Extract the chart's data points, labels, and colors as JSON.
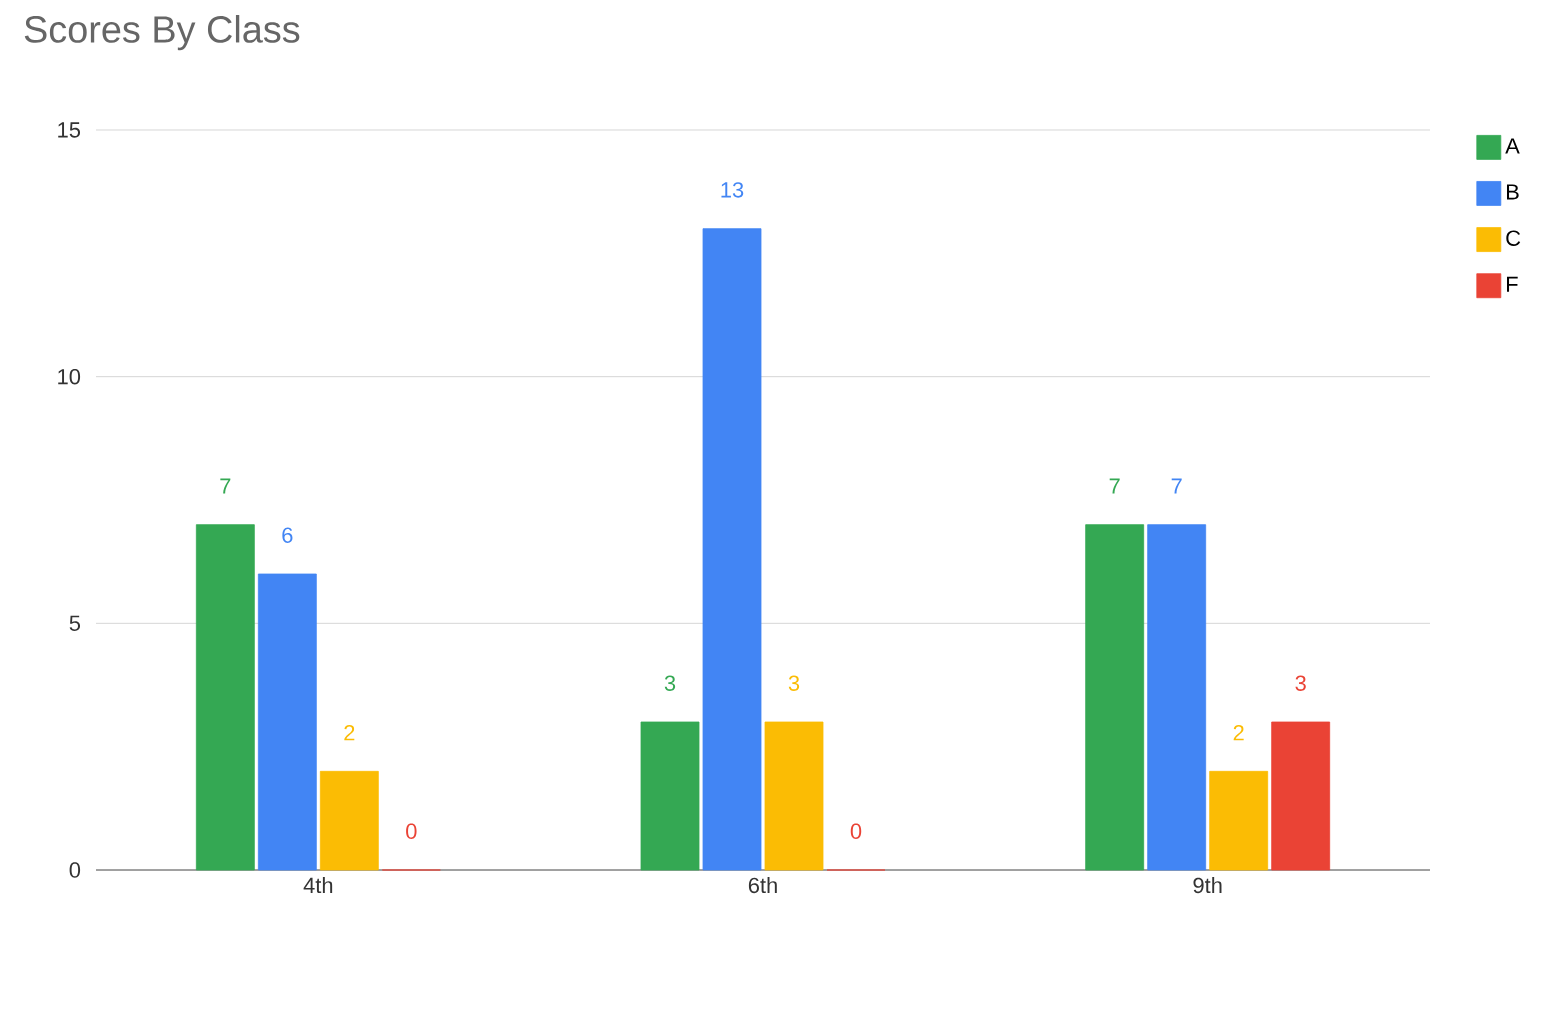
{
  "chart_data": {
    "type": "bar",
    "title": "Scores By Class",
    "categories": [
      "4th",
      "6th",
      "9th"
    ],
    "series": [
      {
        "name": "A",
        "color": "#34a853",
        "values": [
          7,
          3,
          7
        ]
      },
      {
        "name": "B",
        "color": "#4285f4",
        "values": [
          6,
          13,
          7
        ]
      },
      {
        "name": "C",
        "color": "#fbbc04",
        "values": [
          2,
          3,
          2
        ]
      },
      {
        "name": "F",
        "color": "#ea4335",
        "values": [
          0,
          0,
          3
        ]
      }
    ],
    "ylim": [
      0,
      15
    ],
    "yticks": [
      0,
      5,
      10,
      15
    ],
    "grid": "y",
    "legend": "top right",
    "data_labels": true
  }
}
